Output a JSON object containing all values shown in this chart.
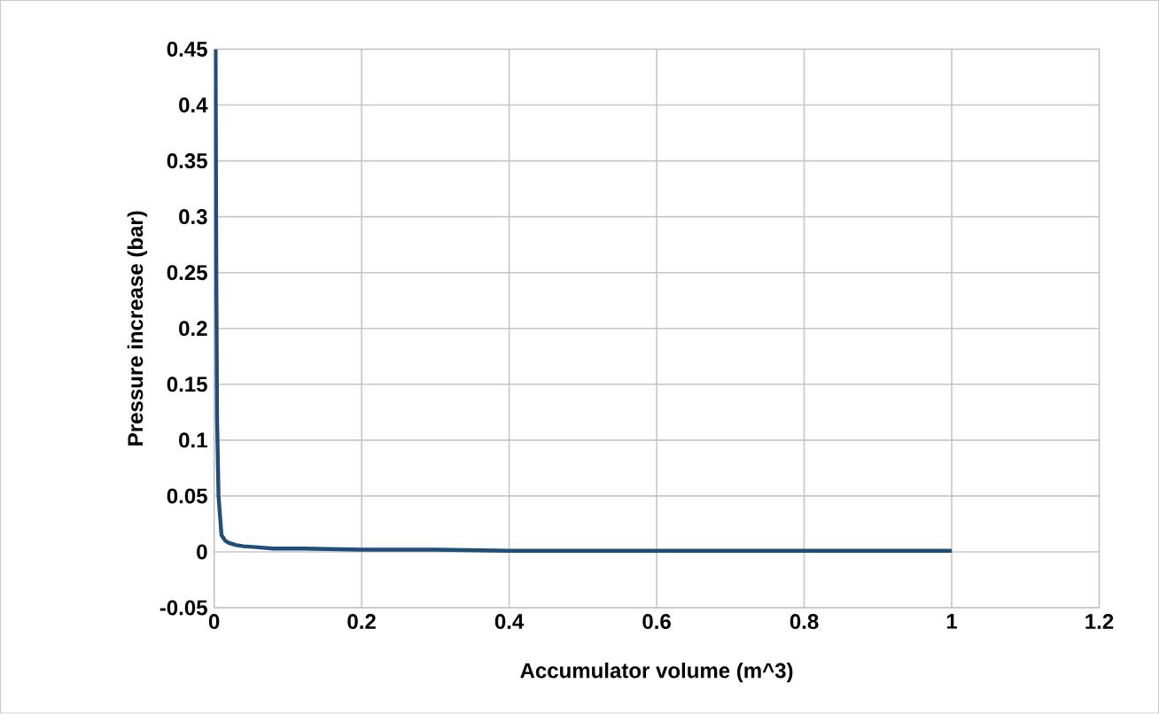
{
  "chart_data": {
    "type": "line",
    "xlabel": "Accumulator volume (m^3)",
    "ylabel": "Pressure increase (bar)",
    "x": [
      0.002,
      0.003,
      0.004,
      0.006,
      0.01,
      0.015,
      0.02,
      0.03,
      0.04,
      0.06,
      0.08,
      0.12,
      0.2,
      0.3,
      0.4,
      0.6,
      0.8,
      1
    ],
    "series": [
      {
        "color": "#1f4e79",
        "values": [
          0.45,
          0.25,
          0.12,
          0.05,
          0.015,
          0.01,
          0.008,
          0.006,
          0.005,
          0.004,
          0.003,
          0.003,
          0.002,
          0.002,
          0.001,
          0.001,
          0.001,
          0.001
        ]
      }
    ],
    "xlim": [
      0,
      1.2
    ],
    "ylim": [
      -0.05,
      0.45
    ],
    "xticks": [
      0,
      0.2,
      0.4,
      0.6,
      0.8,
      1,
      1.2
    ],
    "yticks": [
      -0.05,
      0,
      0.05,
      0.1,
      0.15,
      0.2,
      0.25,
      0.3,
      0.35,
      0.4,
      0.45
    ],
    "grid": true,
    "marker": "none",
    "line_style": "solid"
  }
}
